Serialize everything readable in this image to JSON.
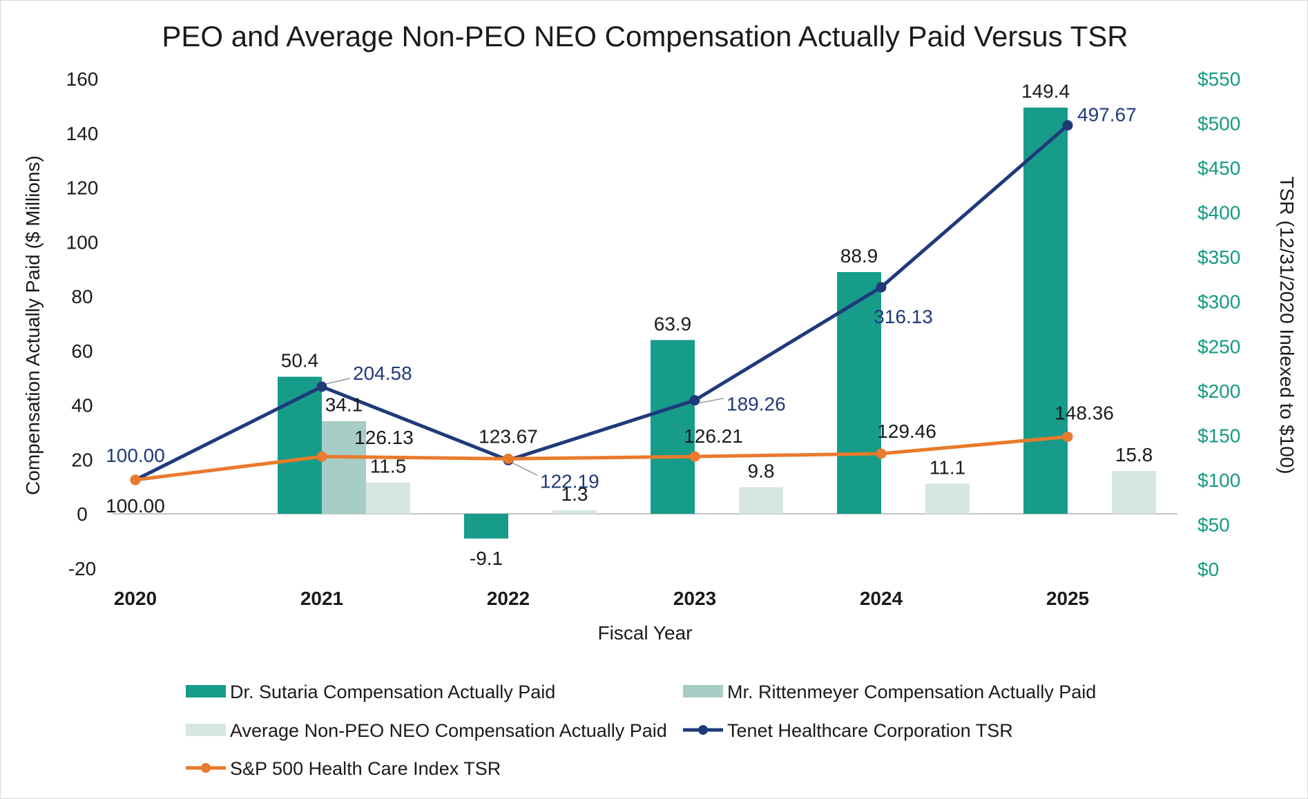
{
  "chart_data": {
    "type": "bar",
    "title": "PEO and Average Non-PEO NEO Compensation Actually Paid Versus TSR",
    "xlabel": "Fiscal Year",
    "ylabel": "Compensation Actually Paid ($ Millions)",
    "y2label": "TSR (12/31/2020 Indexed to $100)",
    "categories": [
      "2020",
      "2021",
      "2022",
      "2023",
      "2024",
      "2025"
    ],
    "ylim": [
      -20,
      160
    ],
    "yticks": [
      "-20",
      "0",
      "20",
      "40",
      "60",
      "80",
      "100",
      "120",
      "140",
      "160"
    ],
    "y2lim": [
      0,
      550
    ],
    "y2ticks": [
      "$0",
      "$50",
      "$100",
      "$150",
      "$200",
      "$250",
      "$300",
      "$350",
      "$400",
      "$450",
      "$500",
      "$550"
    ],
    "grid": false,
    "legend_position": "bottom",
    "colors": {
      "sutaria": "#179c8a",
      "rittenmeyer": "#a6cdc6",
      "non_peo": "#d6e7e3",
      "tenet": "#1f3a7a",
      "sp500": "#ea7a2c",
      "right_axis": "#149a82",
      "zero_line": "#c4c4c4"
    },
    "bar_series": [
      {
        "name": "Dr. Sutaria Compensation Actually Paid",
        "color_key": "sutaria",
        "values": [
          null,
          50.4,
          -9.1,
          63.9,
          88.9,
          149.4
        ],
        "labels": [
          "",
          "50.4",
          "-9.1",
          "63.9",
          "88.9",
          "149.4"
        ]
      },
      {
        "name": "Mr. Rittenmeyer Compensation Actually Paid",
        "color_key": "rittenmeyer",
        "values": [
          null,
          34.1,
          null,
          null,
          null,
          null
        ],
        "labels": [
          "",
          "34.1",
          "",
          "",
          "",
          ""
        ]
      },
      {
        "name": "Average Non-PEO NEO Compensation Actually Paid",
        "color_key": "non_peo",
        "values": [
          null,
          11.5,
          1.3,
          9.8,
          11.1,
          15.8
        ],
        "labels": [
          "",
          "11.5",
          "1.3",
          "9.8",
          "11.1",
          "15.8"
        ]
      }
    ],
    "line_series": [
      {
        "name": "Tenet Healthcare Corporation TSR",
        "color_key": "tenet",
        "axis": "right",
        "values": [
          100.0,
          204.58,
          122.19,
          189.26,
          316.13,
          497.67
        ],
        "labels": [
          "100.00",
          "204.58",
          "122.19",
          "189.26",
          "316.13",
          "497.67"
        ]
      },
      {
        "name": "S&P 500 Health Care Index TSR",
        "color_key": "sp500",
        "axis": "right",
        "values": [
          100.0,
          126.13,
          123.67,
          126.21,
          129.46,
          148.36
        ],
        "labels": [
          "100.00",
          "126.13",
          "123.67",
          "126.21",
          "129.46",
          "148.36"
        ]
      }
    ]
  }
}
